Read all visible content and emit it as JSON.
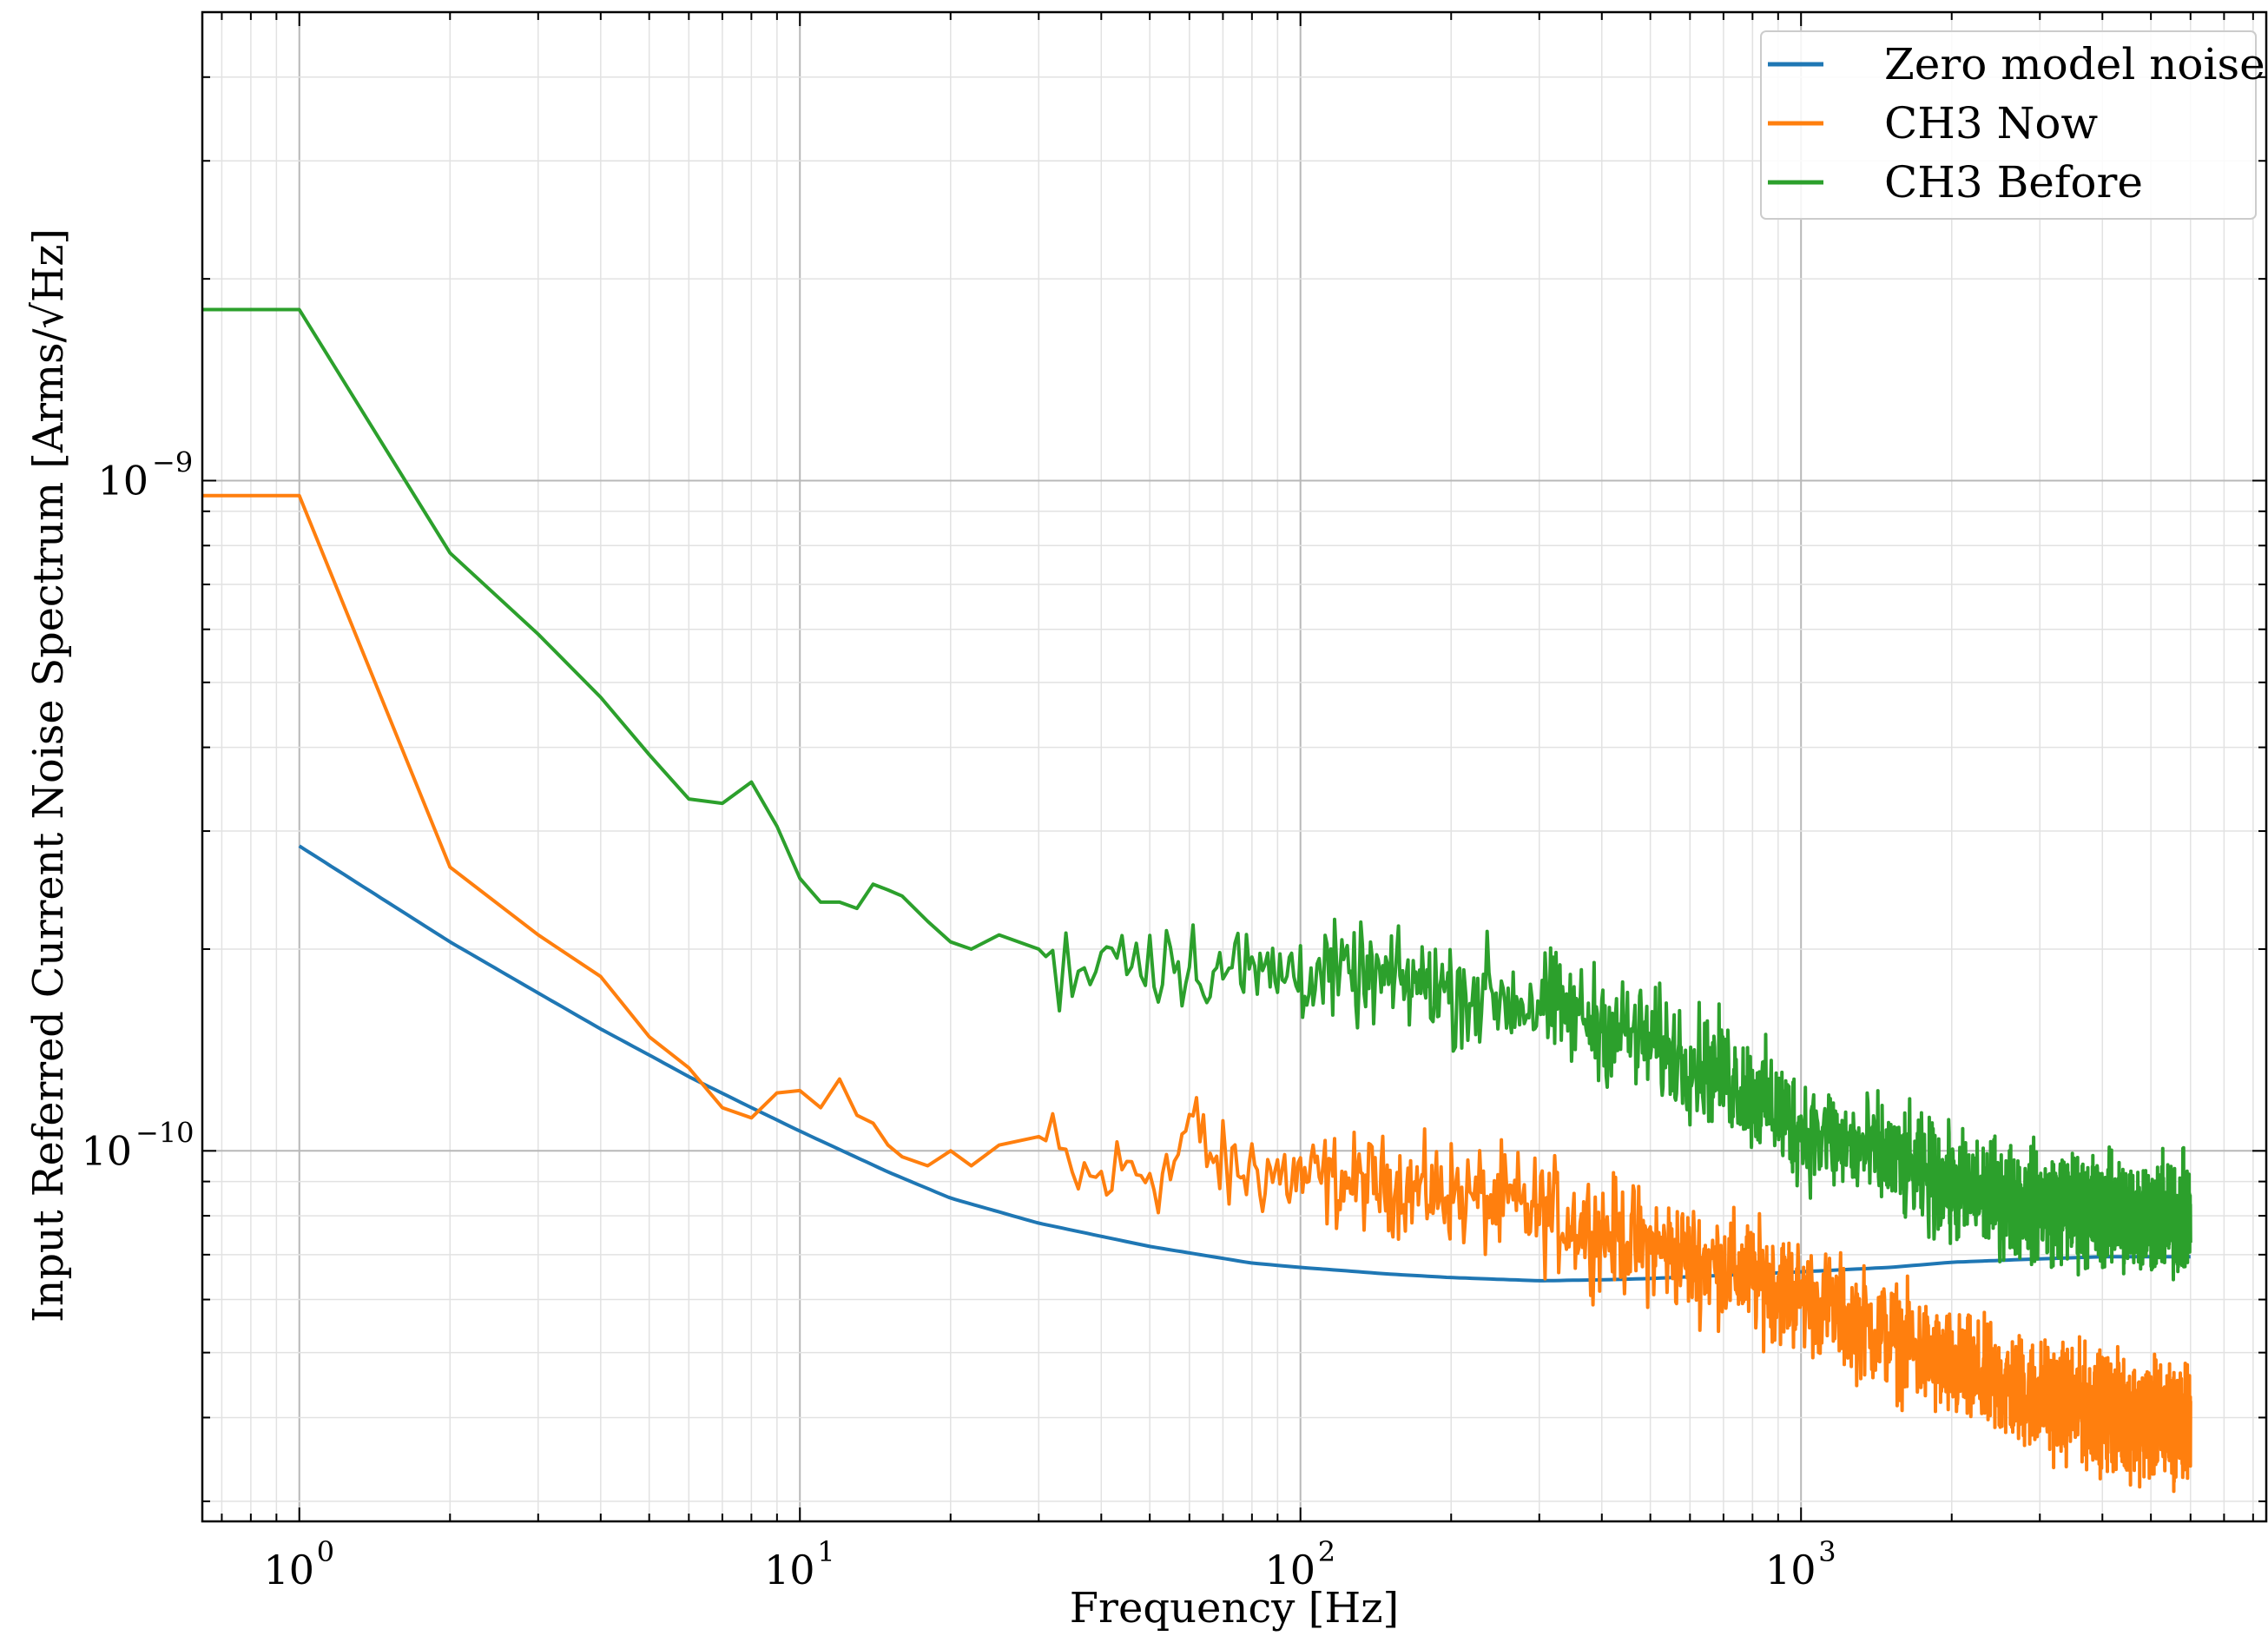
{
  "chart_data": {
    "type": "line",
    "title": "",
    "xlabel": "Frequency [Hz]",
    "ylabel": "Input Referred Current Noise Spectrum [Arms/√Hz]",
    "xscale": "log",
    "yscale": "log",
    "xlim": [
      0.64,
      8500
    ],
    "ylim": [
      2.8e-11,
      5e-09
    ],
    "grid": true,
    "legend_position": "top-right",
    "x_ticks": [
      {
        "value": 1,
        "base": "10",
        "exp": "0"
      },
      {
        "value": 10,
        "base": "10",
        "exp": "1"
      },
      {
        "value": 100,
        "base": "10",
        "exp": "2"
      },
      {
        "value": 1000,
        "base": "10",
        "exp": "3"
      }
    ],
    "y_ticks": [
      {
        "value": 1e-09,
        "base": "10",
        "exp": "−9"
      },
      {
        "value": 1e-10,
        "base": "10",
        "exp": "−10"
      }
    ],
    "series": [
      {
        "name": "Zero model noise",
        "color": "#1f77b4",
        "noise": 0,
        "x": [
          1,
          1.5,
          2,
          3,
          4,
          5,
          6,
          8,
          10,
          15,
          20,
          30,
          50,
          80,
          100,
          150,
          200,
          300,
          400,
          500,
          700,
          1000,
          1500,
          2000,
          3000,
          4000,
          5000,
          6000
        ],
        "y": [
          2.85e-10,
          2.35e-10,
          2.05e-10,
          1.72e-10,
          1.52e-10,
          1.39e-10,
          1.29e-10,
          1.16e-10,
          1.07e-10,
          9.3e-11,
          8.5e-11,
          7.8e-11,
          7.2e-11,
          6.8e-11,
          6.7e-11,
          6.55e-11,
          6.47e-11,
          6.4e-11,
          6.42e-11,
          6.45e-11,
          6.52e-11,
          6.6e-11,
          6.7e-11,
          6.82e-11,
          6.9e-11,
          6.95e-11,
          6.95e-11,
          6.95e-11
        ]
      },
      {
        "name": "CH3 Now",
        "color": "#ff7f0e",
        "noise": 0.07,
        "x": [
          0.64,
          1,
          2,
          3,
          4,
          5,
          6,
          7,
          8,
          9,
          10,
          11,
          12,
          13,
          14,
          15,
          16,
          18,
          20,
          22,
          25,
          30,
          35,
          40,
          45,
          50,
          55,
          60,
          70,
          80,
          100,
          150,
          200,
          300,
          400,
          500,
          700,
          1000,
          1500,
          2000,
          3000,
          4000,
          5000,
          6000
        ],
        "y": [
          9.5e-10,
          9.5e-10,
          2.65e-10,
          2.1e-10,
          1.82e-10,
          1.48e-10,
          1.33e-10,
          1.16e-10,
          1.12e-10,
          1.22e-10,
          1.23e-10,
          1.16e-10,
          1.28e-10,
          1.13e-10,
          1.1e-10,
          1.02e-10,
          9.8e-11,
          9.5e-11,
          1e-10,
          9.5e-11,
          1.02e-10,
          1.05e-10,
          9.2e-11,
          9e-11,
          9.4e-11,
          9.4e-11,
          9.3e-11,
          1.1e-10,
          9.3e-11,
          9.4e-11,
          9.1e-11,
          8.9e-11,
          8.6e-11,
          8.1e-11,
          7.6e-11,
          7.2e-11,
          6.7e-11,
          6.1e-11,
          5.3e-11,
          4.7e-11,
          4.3e-11,
          4.1e-11,
          3.95e-11,
          3.9e-11
        ]
      },
      {
        "name": "CH3 Before",
        "color": "#2ca02c",
        "noise": 0.07,
        "x": [
          0.64,
          1,
          2,
          3,
          4,
          5,
          6,
          7,
          8,
          9,
          10,
          11,
          12,
          13,
          14,
          15,
          16,
          18,
          20,
          22,
          25,
          30,
          35,
          40,
          50,
          60,
          70,
          80,
          100,
          150,
          200,
          300,
          400,
          500,
          700,
          800,
          1000,
          1500,
          2000,
          3000,
          4000,
          5000,
          6000
        ],
        "y": [
          1.8e-09,
          1.8e-09,
          7.8e-10,
          5.9e-10,
          4.75e-10,
          3.9e-10,
          3.35e-10,
          3.3e-10,
          3.55e-10,
          3.05e-10,
          2.55e-10,
          2.35e-10,
          2.35e-10,
          2.3e-10,
          2.5e-10,
          2.45e-10,
          2.4e-10,
          2.2e-10,
          2.05e-10,
          2e-10,
          2.1e-10,
          2e-10,
          1.85e-10,
          2e-10,
          1.95e-10,
          1.9e-10,
          1.88e-10,
          1.85e-10,
          1.85e-10,
          1.8e-10,
          1.75e-10,
          1.65e-10,
          1.55e-10,
          1.45e-10,
          1.3e-10,
          1.22e-10,
          1.08e-10,
          9.7e-11,
          8.8e-11,
          8.3e-11,
          8.1e-11,
          8e-11,
          7.9e-11
        ]
      }
    ]
  }
}
